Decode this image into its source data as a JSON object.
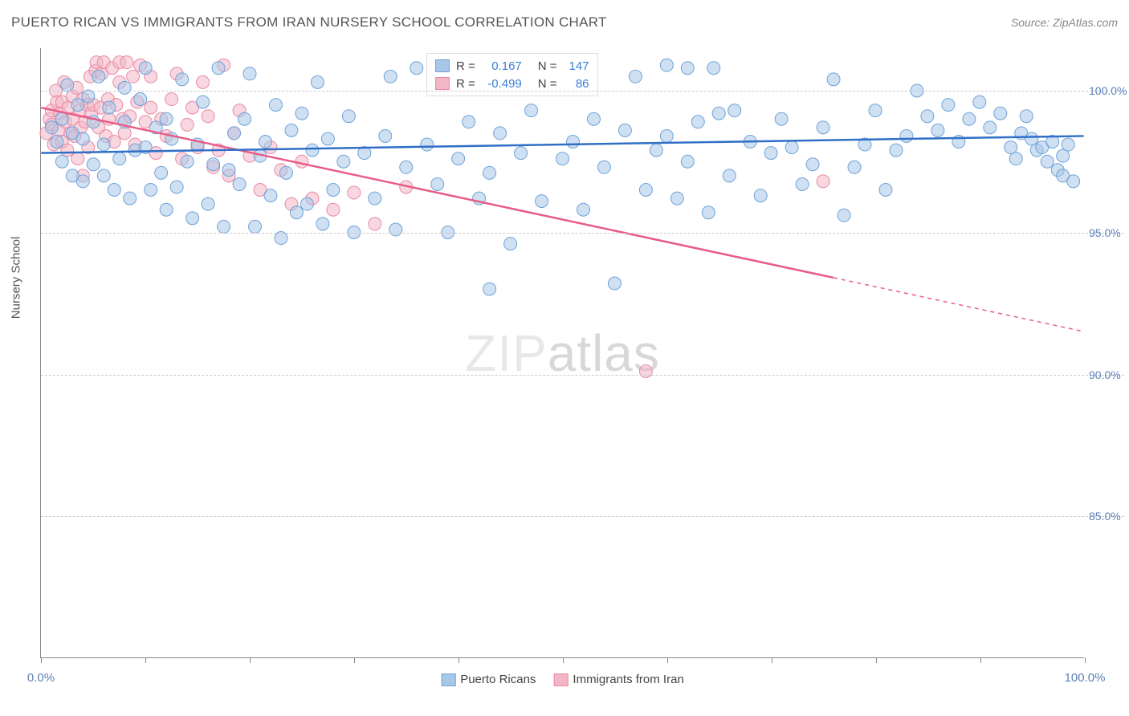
{
  "title": "PUERTO RICAN VS IMMIGRANTS FROM IRAN NURSERY SCHOOL CORRELATION CHART",
  "source": "Source: ZipAtlas.com",
  "ylabel": "Nursery School",
  "watermark_a": "ZIP",
  "watermark_b": "atlas",
  "chart": {
    "type": "scatter",
    "xlim": [
      0,
      100
    ],
    "ylim": [
      80,
      101.5
    ],
    "xticks": [
      0,
      10,
      20,
      30,
      40,
      50,
      60,
      70,
      80,
      90,
      100
    ],
    "xtick_labels": {
      "0": "0.0%",
      "100": "100.0%"
    },
    "yticks": [
      85,
      90,
      95,
      100
    ],
    "ytick_labels": [
      "85.0%",
      "90.0%",
      "95.0%",
      "100.0%"
    ],
    "grid_color": "#cccccc",
    "axis_color": "#888888",
    "series": [
      {
        "name": "Puerto Ricans",
        "color_fill": "#a8c6e8",
        "color_stroke": "#6fa3d8",
        "R": "0.167",
        "N": "147",
        "trend": {
          "x1": 0,
          "y1": 97.8,
          "x2": 100,
          "y2": 98.4
        },
        "extrapolate": null,
        "line_color": "#2f6fc7",
        "marker_r": 8,
        "points": [
          [
            1,
            98.7
          ],
          [
            1.5,
            98.2
          ],
          [
            2,
            99.0
          ],
          [
            2,
            97.5
          ],
          [
            2.5,
            100.2
          ],
          [
            3,
            98.5
          ],
          [
            3,
            97.0
          ],
          [
            3.5,
            99.5
          ],
          [
            4,
            98.3
          ],
          [
            4,
            96.8
          ],
          [
            4.5,
            99.8
          ],
          [
            5,
            97.4
          ],
          [
            5,
            98.9
          ],
          [
            5.5,
            100.5
          ],
          [
            6,
            97.0
          ],
          [
            6,
            98.1
          ],
          [
            6.5,
            99.4
          ],
          [
            7,
            96.5
          ],
          [
            7.5,
            97.6
          ],
          [
            8,
            98.9
          ],
          [
            8,
            100.1
          ],
          [
            8.5,
            96.2
          ],
          [
            9,
            97.9
          ],
          [
            9.5,
            99.7
          ],
          [
            10,
            98.0
          ],
          [
            10,
            100.8
          ],
          [
            10.5,
            96.5
          ],
          [
            11,
            98.7
          ],
          [
            11.5,
            97.1
          ],
          [
            12,
            99.0
          ],
          [
            12,
            95.8
          ],
          [
            12.5,
            98.3
          ],
          [
            13,
            96.6
          ],
          [
            13.5,
            100.4
          ],
          [
            14,
            97.5
          ],
          [
            14.5,
            95.5
          ],
          [
            15,
            98.1
          ],
          [
            15.5,
            99.6
          ],
          [
            16,
            96.0
          ],
          [
            16.5,
            97.4
          ],
          [
            17,
            100.8
          ],
          [
            17.5,
            95.2
          ],
          [
            18,
            97.2
          ],
          [
            18.5,
            98.5
          ],
          [
            19,
            96.7
          ],
          [
            19.5,
            99.0
          ],
          [
            20,
            100.6
          ],
          [
            20.5,
            95.2
          ],
          [
            21,
            97.7
          ],
          [
            21.5,
            98.2
          ],
          [
            22,
            96.3
          ],
          [
            22.5,
            99.5
          ],
          [
            23,
            94.8
          ],
          [
            23.5,
            97.1
          ],
          [
            24,
            98.6
          ],
          [
            24.5,
            95.7
          ],
          [
            25,
            99.2
          ],
          [
            25.5,
            96.0
          ],
          [
            26,
            97.9
          ],
          [
            26.5,
            100.3
          ],
          [
            27,
            95.3
          ],
          [
            27.5,
            98.3
          ],
          [
            28,
            96.5
          ],
          [
            29,
            97.5
          ],
          [
            29.5,
            99.1
          ],
          [
            30,
            95.0
          ],
          [
            31,
            97.8
          ],
          [
            32,
            96.2
          ],
          [
            33,
            98.4
          ],
          [
            33.5,
            100.5
          ],
          [
            34,
            95.1
          ],
          [
            35,
            97.3
          ],
          [
            36,
            100.8
          ],
          [
            37,
            98.1
          ],
          [
            38,
            96.7
          ],
          [
            39,
            95.0
          ],
          [
            40,
            97.6
          ],
          [
            41,
            98.9
          ],
          [
            42,
            96.2
          ],
          [
            43,
            97.1
          ],
          [
            43,
            93.0
          ],
          [
            44,
            98.5
          ],
          [
            45,
            94.6
          ],
          [
            46,
            97.8
          ],
          [
            47,
            99.3
          ],
          [
            48,
            96.1
          ],
          [
            49,
            100.6
          ],
          [
            50,
            97.6
          ],
          [
            51,
            98.2
          ],
          [
            52,
            95.8
          ],
          [
            53,
            99.0
          ],
          [
            54,
            97.3
          ],
          [
            55,
            93.2
          ],
          [
            56,
            98.6
          ],
          [
            57,
            100.5
          ],
          [
            58,
            96.5
          ],
          [
            59,
            97.9
          ],
          [
            60,
            98.4
          ],
          [
            60,
            100.9
          ],
          [
            61,
            96.2
          ],
          [
            62,
            97.5
          ],
          [
            62,
            100.8
          ],
          [
            63,
            98.9
          ],
          [
            64,
            95.7
          ],
          [
            64.5,
            100.8
          ],
          [
            65,
            99.2
          ],
          [
            66,
            97.0
          ],
          [
            66.5,
            99.3
          ],
          [
            68,
            98.2
          ],
          [
            69,
            96.3
          ],
          [
            70,
            97.8
          ],
          [
            71,
            99.0
          ],
          [
            72,
            98.0
          ],
          [
            73,
            96.7
          ],
          [
            74,
            97.4
          ],
          [
            75,
            98.7
          ],
          [
            76,
            100.4
          ],
          [
            77,
            95.6
          ],
          [
            78,
            97.3
          ],
          [
            79,
            98.1
          ],
          [
            80,
            99.3
          ],
          [
            81,
            96.5
          ],
          [
            82,
            97.9
          ],
          [
            83,
            98.4
          ],
          [
            84,
            100.0
          ],
          [
            85,
            99.1
          ],
          [
            86,
            98.6
          ],
          [
            87,
            99.5
          ],
          [
            88,
            98.2
          ],
          [
            89,
            99.0
          ],
          [
            90,
            99.6
          ],
          [
            91,
            98.7
          ],
          [
            92,
            99.2
          ],
          [
            93,
            98.0
          ],
          [
            93.5,
            97.6
          ],
          [
            94,
            98.5
          ],
          [
            94.5,
            99.1
          ],
          [
            95,
            98.3
          ],
          [
            95.5,
            97.9
          ],
          [
            96,
            98.0
          ],
          [
            96.5,
            97.5
          ],
          [
            97,
            98.2
          ],
          [
            97.5,
            97.2
          ],
          [
            98,
            97.7
          ],
          [
            98,
            97.0
          ],
          [
            98.5,
            98.1
          ],
          [
            99,
            96.8
          ]
        ]
      },
      {
        "name": "Immigrants from Iran",
        "color_fill": "#f2b6c6",
        "color_stroke": "#e88aa5",
        "R": "-0.499",
        "N": "86",
        "trend": {
          "x1": 0,
          "y1": 99.4,
          "x2": 76,
          "y2": 93.4
        },
        "extrapolate": {
          "x1": 76,
          "y1": 93.4,
          "x2": 100,
          "y2": 91.5
        },
        "line_color": "#e85d87",
        "marker_r": 8,
        "points": [
          [
            0.5,
            98.5
          ],
          [
            0.8,
            99.0
          ],
          [
            1,
            98.8
          ],
          [
            1,
            99.3
          ],
          [
            1.2,
            98.1
          ],
          [
            1.4,
            100.0
          ],
          [
            1.5,
            99.6
          ],
          [
            1.7,
            98.6
          ],
          [
            1.8,
            99.2
          ],
          [
            2,
            98.2
          ],
          [
            2,
            99.6
          ],
          [
            2.2,
            100.3
          ],
          [
            2.3,
            98.9
          ],
          [
            2.5,
            97.9
          ],
          [
            2.6,
            99.4
          ],
          [
            2.8,
            98.5
          ],
          [
            3,
            99.8
          ],
          [
            3,
            99.0
          ],
          [
            3.2,
            98.4
          ],
          [
            3.4,
            100.1
          ],
          [
            3.5,
            97.6
          ],
          [
            3.7,
            99.3
          ],
          [
            3.8,
            98.7
          ],
          [
            4,
            99.7
          ],
          [
            4,
            97.0
          ],
          [
            4.2,
            98.9
          ],
          [
            4.4,
            99.5
          ],
          [
            4.5,
            98.0
          ],
          [
            4.7,
            100.5
          ],
          [
            4.8,
            99.2
          ],
          [
            5,
            99.5
          ],
          [
            5.2,
            100.7
          ],
          [
            5.3,
            101.0
          ],
          [
            5.5,
            98.7
          ],
          [
            5.7,
            99.4
          ],
          [
            5.8,
            100.6
          ],
          [
            6,
            101.0
          ],
          [
            6.2,
            98.4
          ],
          [
            6.4,
            99.7
          ],
          [
            6.5,
            99.0
          ],
          [
            6.8,
            100.8
          ],
          [
            7,
            98.2
          ],
          [
            7.2,
            99.5
          ],
          [
            7.5,
            100.3
          ],
          [
            7.5,
            101.0
          ],
          [
            7.8,
            99.0
          ],
          [
            8,
            98.5
          ],
          [
            8.2,
            101.0
          ],
          [
            8.5,
            99.1
          ],
          [
            8.8,
            100.5
          ],
          [
            9,
            98.1
          ],
          [
            9.2,
            99.6
          ],
          [
            9.5,
            100.9
          ],
          [
            10,
            98.9
          ],
          [
            10.5,
            99.4
          ],
          [
            10.5,
            100.5
          ],
          [
            11,
            97.8
          ],
          [
            11.5,
            99.0
          ],
          [
            12,
            98.4
          ],
          [
            12.5,
            99.7
          ],
          [
            13,
            100.6
          ],
          [
            13.5,
            97.6
          ],
          [
            14,
            98.8
          ],
          [
            14.5,
            99.4
          ],
          [
            15,
            98.0
          ],
          [
            15.5,
            100.3
          ],
          [
            16,
            99.1
          ],
          [
            16.5,
            97.3
          ],
          [
            17,
            97.9
          ],
          [
            17.5,
            100.9
          ],
          [
            18,
            97.0
          ],
          [
            18.5,
            98.5
          ],
          [
            19,
            99.3
          ],
          [
            20,
            97.7
          ],
          [
            21,
            96.5
          ],
          [
            22,
            98.0
          ],
          [
            23,
            97.2
          ],
          [
            24,
            96.0
          ],
          [
            25,
            97.5
          ],
          [
            26,
            96.2
          ],
          [
            28,
            95.8
          ],
          [
            30,
            96.4
          ],
          [
            32,
            95.3
          ],
          [
            35,
            96.6
          ],
          [
            58,
            90.1
          ],
          [
            75,
            96.8
          ]
        ]
      }
    ]
  },
  "stats_legend": {
    "r_label": "R =",
    "n_label": "N ="
  },
  "bottom_legend": [
    {
      "swatch_fill": "#a8c6e8",
      "swatch_stroke": "#6fa3d8",
      "label": "Puerto Ricans"
    },
    {
      "swatch_fill": "#f2b6c6",
      "swatch_stroke": "#e88aa5",
      "label": "Immigrants from Iran"
    }
  ]
}
